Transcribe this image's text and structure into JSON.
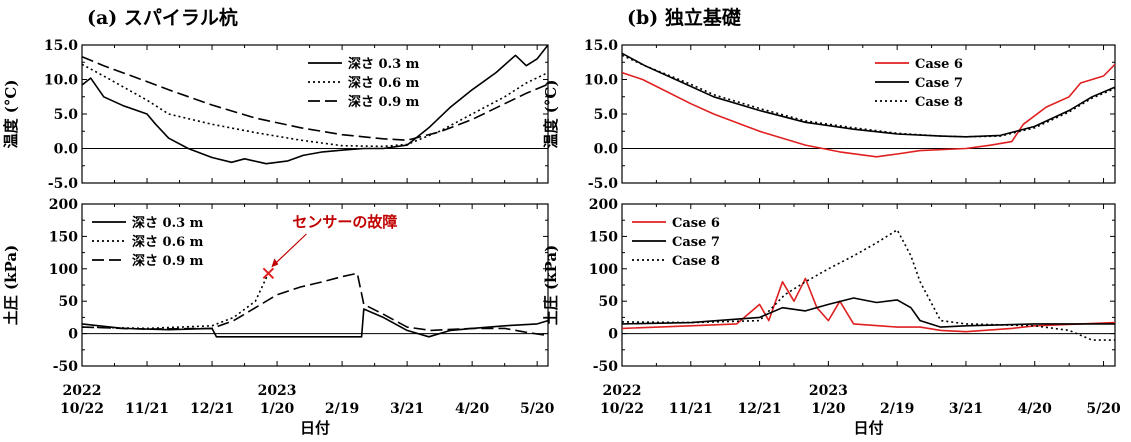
{
  "chart_data": [
    {
      "type": "line",
      "panel": "top-left",
      "title": "(a) スパイラル杭",
      "ylabel": "温度 (°C)",
      "ylim": [
        -5,
        15
      ],
      "yticks": [
        "15.0",
        "10.0",
        "5.0",
        "0.0",
        "-5.0"
      ],
      "ytick_values": [
        15,
        10,
        5,
        0,
        -5
      ],
      "legend_position": "top-right",
      "series": [
        {
          "name": "深さ 0.3 m",
          "color": "#000000",
          "dash": "solid",
          "points": [
            [
              "2022-10-22",
              9.2
            ],
            [
              "2022-10-26",
              10.2
            ],
            [
              "2022-11-01",
              7.5
            ],
            [
              "2022-11-10",
              6.2
            ],
            [
              "2022-11-21",
              5.0
            ],
            [
              "2022-11-25",
              3.5
            ],
            [
              "2022-12-01",
              1.5
            ],
            [
              "2022-12-10",
              0.0
            ],
            [
              "2022-12-21",
              -1.3
            ],
            [
              "2022-12-30",
              -2.0
            ],
            [
              "2023-01-05",
              -1.5
            ],
            [
              "2023-01-15",
              -2.2
            ],
            [
              "2023-01-25",
              -1.8
            ],
            [
              "2023-02-01",
              -1.0
            ],
            [
              "2023-02-10",
              -0.5
            ],
            [
              "2023-02-20",
              -0.2
            ],
            [
              "2023-03-01",
              0.0
            ],
            [
              "2023-03-10",
              0.0
            ],
            [
              "2023-03-21",
              0.5
            ],
            [
              "2023-03-31",
              3.0
            ],
            [
              "2023-04-10",
              6.0
            ],
            [
              "2023-04-20",
              8.5
            ],
            [
              "2023-05-01",
              11.0
            ],
            [
              "2023-05-10",
              13.5
            ],
            [
              "2023-05-15",
              12.0
            ],
            [
              "2023-05-20",
              13.0
            ],
            [
              "2023-05-25",
              15.0
            ]
          ]
        },
        {
          "name": "深さ 0.6 m",
          "color": "#000000",
          "dash": "dotted",
          "points": [
            [
              "2022-10-22",
              12.2
            ],
            [
              "2022-11-01",
              10.5
            ],
            [
              "2022-11-21",
              7.0
            ],
            [
              "2022-12-01",
              5.0
            ],
            [
              "2022-12-21",
              3.5
            ],
            [
              "2023-01-10",
              2.3
            ],
            [
              "2023-01-31",
              1.2
            ],
            [
              "2023-02-19",
              0.4
            ],
            [
              "2023-03-10",
              0.3
            ],
            [
              "2023-03-21",
              0.6
            ],
            [
              "2023-04-05",
              2.5
            ],
            [
              "2023-04-20",
              5.0
            ],
            [
              "2023-05-05",
              7.5
            ],
            [
              "2023-05-15",
              9.5
            ],
            [
              "2023-05-25",
              11.0
            ]
          ]
        },
        {
          "name": "深さ 0.9 m",
          "color": "#000000",
          "dash": "dashed",
          "points": [
            [
              "2022-10-22",
              13.3
            ],
            [
              "2022-11-01",
              12.0
            ],
            [
              "2022-11-21",
              9.7
            ],
            [
              "2022-12-01",
              8.5
            ],
            [
              "2022-12-21",
              6.3
            ],
            [
              "2023-01-10",
              4.4
            ],
            [
              "2023-01-31",
              3.0
            ],
            [
              "2023-02-19",
              2.0
            ],
            [
              "2023-03-10",
              1.4
            ],
            [
              "2023-03-21",
              1.2
            ],
            [
              "2023-04-05",
              2.4
            ],
            [
              "2023-04-20",
              4.2
            ],
            [
              "2023-05-05",
              6.5
            ],
            [
              "2023-05-15",
              8.0
            ],
            [
              "2023-05-25",
              9.3
            ]
          ]
        }
      ]
    },
    {
      "type": "line",
      "panel": "top-right",
      "title": "(b) 独立基礎",
      "ylabel": "温度 (°C)",
      "ylim": [
        -5,
        15
      ],
      "yticks": [
        "15.0",
        "10.0",
        "5.0",
        "0.0",
        "-5.0"
      ],
      "ytick_values": [
        15,
        10,
        5,
        0,
        -5
      ],
      "legend_position": "top-right",
      "series": [
        {
          "name": "Case 6",
          "color": "#e02020",
          "dash": "solid",
          "points": [
            [
              "2022-10-22",
              11.0
            ],
            [
              "2022-10-31",
              10.0
            ],
            [
              "2022-11-21",
              6.5
            ],
            [
              "2022-12-01",
              5.0
            ],
            [
              "2022-12-21",
              2.5
            ],
            [
              "2023-01-10",
              0.5
            ],
            [
              "2023-01-25",
              -0.5
            ],
            [
              "2023-02-10",
              -1.2
            ],
            [
              "2023-02-19",
              -0.8
            ],
            [
              "2023-03-01",
              -0.3
            ],
            [
              "2023-03-21",
              0.0
            ],
            [
              "2023-04-01",
              0.5
            ],
            [
              "2023-04-10",
              1.0
            ],
            [
              "2023-04-15",
              3.5
            ],
            [
              "2023-04-25",
              6.0
            ],
            [
              "2023-05-05",
              7.5
            ],
            [
              "2023-05-10",
              9.5
            ],
            [
              "2023-05-20",
              10.5
            ],
            [
              "2023-05-25",
              12.2
            ]
          ]
        },
        {
          "name": "Case 7",
          "color": "#000000",
          "dash": "solid",
          "points": [
            [
              "2022-10-22",
              13.8
            ],
            [
              "2022-11-01",
              12.0
            ],
            [
              "2022-11-21",
              9.0
            ],
            [
              "2022-12-01",
              7.5
            ],
            [
              "2022-12-21",
              5.5
            ],
            [
              "2023-01-10",
              3.8
            ],
            [
              "2023-01-31",
              2.8
            ],
            [
              "2023-02-19",
              2.1
            ],
            [
              "2023-03-10",
              1.8
            ],
            [
              "2023-03-21",
              1.7
            ],
            [
              "2023-04-05",
              1.9
            ],
            [
              "2023-04-20",
              3.2
            ],
            [
              "2023-05-05",
              5.5
            ],
            [
              "2023-05-15",
              7.5
            ],
            [
              "2023-05-25",
              8.9
            ]
          ]
        },
        {
          "name": "Case 8",
          "color": "#000000",
          "dash": "dotted",
          "points": [
            [
              "2022-10-22",
              13.5
            ],
            [
              "2022-11-01",
              12.0
            ],
            [
              "2022-11-21",
              9.3
            ],
            [
              "2022-12-01",
              7.8
            ],
            [
              "2022-12-21",
              5.8
            ],
            [
              "2023-01-10",
              4.0
            ],
            [
              "2023-01-31",
              3.0
            ],
            [
              "2023-02-19",
              2.2
            ],
            [
              "2023-03-10",
              1.8
            ],
            [
              "2023-03-21",
              1.7
            ],
            [
              "2023-04-05",
              1.8
            ],
            [
              "2023-04-20",
              3.0
            ],
            [
              "2023-05-05",
              5.3
            ],
            [
              "2023-05-15",
              7.3
            ],
            [
              "2023-05-25",
              8.7
            ]
          ]
        }
      ]
    },
    {
      "type": "line",
      "panel": "bottom-left",
      "ylabel": "土圧 (kPa)",
      "ylim": [
        -50,
        200
      ],
      "yticks": [
        "200",
        "150",
        "100",
        "50",
        "0",
        "-50"
      ],
      "ytick_values": [
        200,
        150,
        100,
        50,
        0,
        -50
      ],
      "legend_position": "top-left",
      "annotation": {
        "text": "センサーの故障",
        "target": [
          "2023-01-16",
          93
        ]
      },
      "series": [
        {
          "name": "深さ 0.3 m",
          "color": "#000000",
          "dash": "solid",
          "points": [
            [
              "2022-10-22",
              15
            ],
            [
              "2022-11-10",
              8
            ],
            [
              "2022-12-01",
              6
            ],
            [
              "2022-12-21",
              8
            ],
            [
              "2022-12-23",
              -5
            ],
            [
              "2023-01-20",
              -5
            ],
            [
              "2023-02-19",
              -5
            ],
            [
              "2023-02-28",
              -5
            ],
            [
              "2023-03-01",
              38
            ],
            [
              "2023-03-10",
              25
            ],
            [
              "2023-03-21",
              5
            ],
            [
              "2023-03-31",
              -5
            ],
            [
              "2023-04-10",
              5
            ],
            [
              "2023-04-20",
              8
            ],
            [
              "2023-05-05",
              12
            ],
            [
              "2023-05-20",
              15
            ],
            [
              "2023-05-25",
              20
            ]
          ]
        },
        {
          "name": "深さ 0.6 m",
          "color": "#000000",
          "dash": "dotted",
          "points": [
            [
              "2022-10-22",
              10
            ],
            [
              "2022-11-21",
              8
            ],
            [
              "2022-12-21",
              12
            ],
            [
              "2022-12-31",
              25
            ],
            [
              "2023-01-10",
              50
            ],
            [
              "2023-01-16",
              93
            ]
          ]
        },
        {
          "name": "深さ 0.9 m",
          "color": "#000000",
          "dash": "dashed",
          "points": [
            [
              "2022-10-22",
              10
            ],
            [
              "2022-11-21",
              7
            ],
            [
              "2022-12-21",
              8
            ],
            [
              "2022-12-31",
              20
            ],
            [
              "2023-01-10",
              40
            ],
            [
              "2023-01-20",
              60
            ],
            [
              "2023-01-31",
              72
            ],
            [
              "2023-02-10",
              80
            ],
            [
              "2023-02-19",
              88
            ],
            [
              "2023-02-26",
              93
            ],
            [
              "2023-03-01",
              45
            ],
            [
              "2023-03-10",
              30
            ],
            [
              "2023-03-21",
              10
            ],
            [
              "2023-04-01",
              5
            ],
            [
              "2023-04-20",
              8
            ],
            [
              "2023-05-05",
              8
            ],
            [
              "2023-05-15",
              2
            ],
            [
              "2023-05-25",
              -3
            ]
          ]
        }
      ]
    },
    {
      "type": "line",
      "panel": "bottom-right",
      "ylabel": "土圧 (kPa)",
      "ylim": [
        -50,
        200
      ],
      "yticks": [
        "200",
        "150",
        "100",
        "50",
        "0",
        "-50"
      ],
      "ytick_values": [
        200,
        150,
        100,
        50,
        0,
        -50
      ],
      "legend_position": "top-left",
      "series": [
        {
          "name": "Case 6",
          "color": "#e02020",
          "dash": "solid",
          "points": [
            [
              "2022-10-22",
              8
            ],
            [
              "2022-11-21",
              12
            ],
            [
              "2022-12-11",
              15
            ],
            [
              "2022-12-21",
              45
            ],
            [
              "2022-12-25",
              20
            ],
            [
              "2022-12-31",
              80
            ],
            [
              "2023-01-05",
              50
            ],
            [
              "2023-01-10",
              85
            ],
            [
              "2023-01-15",
              40
            ],
            [
              "2023-01-20",
              20
            ],
            [
              "2023-01-25",
              50
            ],
            [
              "2023-01-31",
              15
            ],
            [
              "2023-02-19",
              10
            ],
            [
              "2023-03-01",
              10
            ],
            [
              "2023-03-10",
              5
            ],
            [
              "2023-03-21",
              3
            ],
            [
              "2023-04-10",
              8
            ],
            [
              "2023-04-20",
              12
            ],
            [
              "2023-05-10",
              15
            ],
            [
              "2023-05-25",
              17
            ]
          ]
        },
        {
          "name": "Case 7",
          "color": "#000000",
          "dash": "solid",
          "points": [
            [
              "2022-10-22",
              15
            ],
            [
              "2022-11-21",
              17
            ],
            [
              "2022-12-21",
              25
            ],
            [
              "2022-12-31",
              40
            ],
            [
              "2023-01-10",
              35
            ],
            [
              "2023-01-20",
              45
            ],
            [
              "2023-01-31",
              55
            ],
            [
              "2023-02-10",
              48
            ],
            [
              "2023-02-19",
              52
            ],
            [
              "2023-02-25",
              40
            ],
            [
              "2023-03-01",
              20
            ],
            [
              "2023-03-10",
              10
            ],
            [
              "2023-03-21",
              12
            ],
            [
              "2023-04-20",
              15
            ],
            [
              "2023-05-25",
              15
            ]
          ]
        },
        {
          "name": "Case 8",
          "color": "#000000",
          "dash": "dotted",
          "points": [
            [
              "2022-10-22",
              18
            ],
            [
              "2022-11-21",
              17
            ],
            [
              "2022-12-21",
              20
            ],
            [
              "2023-01-01",
              60
            ],
            [
              "2023-01-10",
              80
            ],
            [
              "2023-01-20",
              100
            ],
            [
              "2023-01-31",
              120
            ],
            [
              "2023-02-10",
              140
            ],
            [
              "2023-02-19",
              160
            ],
            [
              "2023-02-25",
              120
            ],
            [
              "2023-03-01",
              80
            ],
            [
              "2023-03-10",
              20
            ],
            [
              "2023-03-21",
              15
            ],
            [
              "2023-04-20",
              12
            ],
            [
              "2023-05-05",
              5
            ],
            [
              "2023-05-15",
              -10
            ],
            [
              "2023-05-25",
              -10
            ]
          ]
        }
      ]
    }
  ],
  "x_axis": {
    "ticks": [
      {
        "date": "2022-10-22",
        "label": "10/22"
      },
      {
        "date": "2022-11-21",
        "label": "11/21"
      },
      {
        "date": "2022-12-21",
        "label": "12/21"
      },
      {
        "date": "2023-01-20",
        "label": "1/20"
      },
      {
        "date": "2023-02-19",
        "label": "2/19"
      },
      {
        "date": "2023-03-21",
        "label": "3/21"
      },
      {
        "date": "2023-04-20",
        "label": "4/20"
      },
      {
        "date": "2023-05-20",
        "label": "5/20"
      }
    ],
    "year_labels": [
      {
        "date": "2022-10-22",
        "label": "2022"
      },
      {
        "date": "2023-01-20",
        "label": "2023"
      }
    ],
    "xlabel": "日付",
    "xlim": [
      "2022-10-22",
      "2023-05-25"
    ]
  }
}
